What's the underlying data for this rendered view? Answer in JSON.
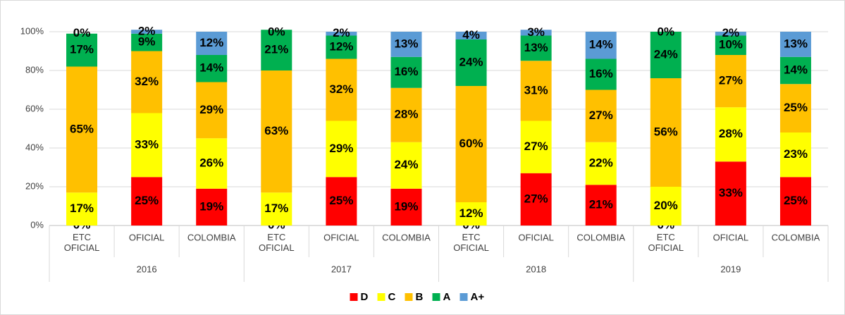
{
  "chart_data": {
    "type": "bar",
    "stacked": true,
    "categories": [
      "ETC OFICIAL",
      "OFICIAL",
      "COLOMBIA",
      "ETC OFICIAL",
      "OFICIAL",
      "COLOMBIA",
      "ETC OFICIAL",
      "OFICIAL",
      "COLOMBIA",
      "ETC OFICIAL",
      "OFICIAL",
      "COLOMBIA"
    ],
    "category_groups": [
      "2016",
      "2017",
      "2018",
      "2019"
    ],
    "series": [
      {
        "name": "D",
        "color": "#ff0000",
        "values": [
          0,
          25,
          19,
          0,
          25,
          19,
          0,
          27,
          21,
          0,
          33,
          25
        ],
        "value_labels": [
          "0%",
          "25%",
          "19%",
          "0%",
          "25%",
          "19%",
          "0%",
          "27%",
          "21%",
          "0%",
          "33%",
          "25%"
        ]
      },
      {
        "name": "C",
        "color": "#ffff00",
        "values": [
          17,
          33,
          26,
          17,
          29,
          24,
          12,
          27,
          22,
          20,
          28,
          23
        ],
        "value_labels": [
          "17%",
          "33%",
          "26%",
          "17%",
          "29%",
          "24%",
          "12%",
          "27%",
          "22%",
          "20%",
          "28%",
          "23%"
        ]
      },
      {
        "name": "B",
        "color": "#ffc000",
        "values": [
          65,
          32,
          29,
          63,
          32,
          28,
          60,
          31,
          27,
          56,
          27,
          25
        ],
        "value_labels": [
          "65%",
          "32%",
          "29%",
          "63%",
          "32%",
          "28%",
          "60%",
          "31%",
          "27%",
          "56%",
          "27%",
          "25%"
        ]
      },
      {
        "name": "A",
        "color": "#00b050",
        "values": [
          17,
          9,
          14,
          21,
          12,
          16,
          24,
          13,
          16,
          24,
          10,
          14
        ],
        "value_labels": [
          "17%",
          "9%",
          "14%",
          "21%",
          "12%",
          "16%",
          "24%",
          "13%",
          "16%",
          "24%",
          "10%",
          "14%"
        ]
      },
      {
        "name": "A+",
        "color": "#5b9bd5",
        "values": [
          0,
          2,
          12,
          0,
          2,
          13,
          4,
          3,
          14,
          0,
          2,
          13
        ],
        "value_labels": [
          "0%",
          "2%",
          "12%",
          "0%",
          "2%",
          "13%",
          "4%",
          "3%",
          "14%",
          "0%",
          "2%",
          "13%"
        ]
      }
    ],
    "ylim": [
      0,
      100
    ],
    "yticks": [
      {
        "value": 0,
        "label": "0%"
      },
      {
        "value": 20,
        "label": "20%"
      },
      {
        "value": 40,
        "label": "40%"
      },
      {
        "value": 60,
        "label": "60%"
      },
      {
        "value": 80,
        "label": "80%"
      },
      {
        "value": 100,
        "label": "100%"
      }
    ],
    "grid": true,
    "legend": "bottom"
  }
}
